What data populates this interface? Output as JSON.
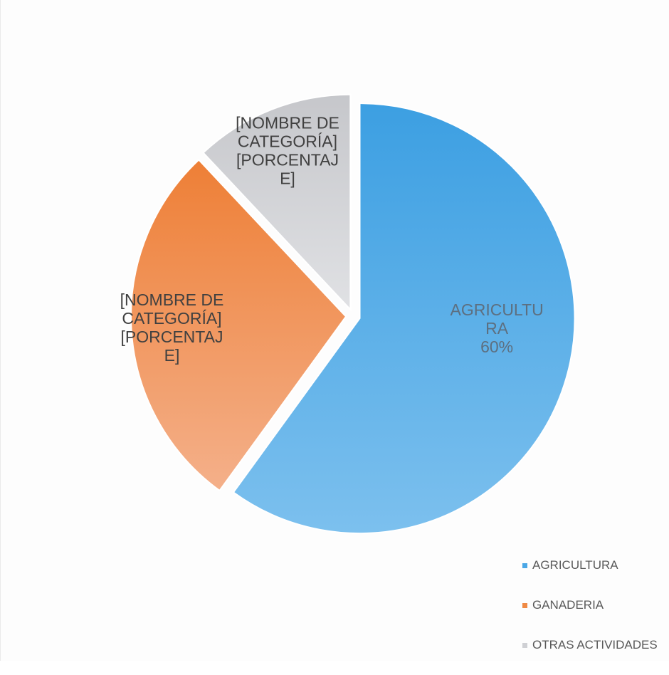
{
  "chart_data": {
    "type": "pie",
    "slices": [
      {
        "name": "AGRICULTURA",
        "value": 60,
        "color": "#4aa7e6",
        "label_lines": [
          "AGRICULTU",
          "RA",
          "60%"
        ],
        "label_color": "#5d6f80"
      },
      {
        "name": "GANADERIA",
        "value": 28,
        "color": "#ef8a45",
        "label_lines": [
          "[NOMBRE DE",
          "CATEGORÍA]",
          "[PORCENTAJ",
          "E]"
        ],
        "label_color": "#404040"
      },
      {
        "name": "OTRAS ACTIVIDADES",
        "value": 12,
        "color": "#cfd0d4",
        "label_lines": [
          "[NOMBRE DE",
          "CATEGORÍA]",
          "[PORCENTAJ",
          "E]"
        ],
        "label_color": "#404040"
      }
    ],
    "legend": {
      "position": "bottom-right",
      "items": [
        "AGRICULTURA",
        "GANADERIA",
        "OTRAS ACTIVIDADES"
      ]
    }
  }
}
